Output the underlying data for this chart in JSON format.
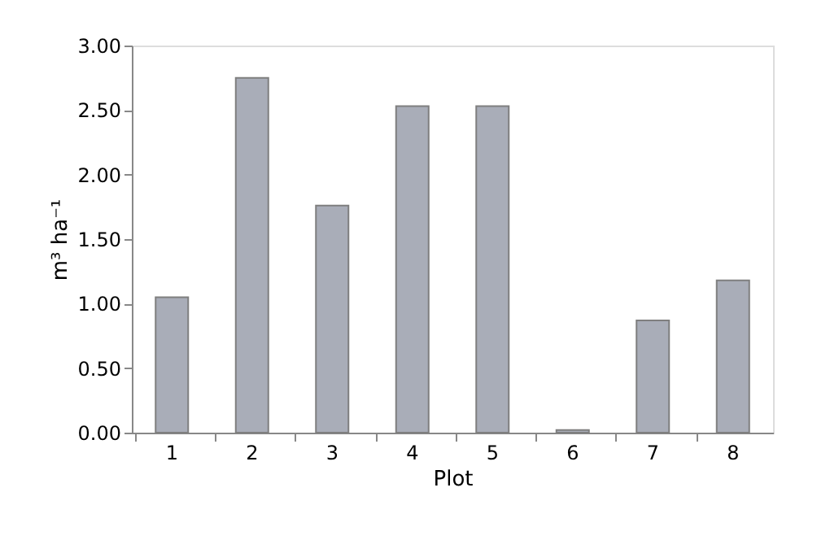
{
  "chart_data": {
    "type": "bar",
    "xlabel": "Plot",
    "ylabel": "m³ ha⁻¹",
    "categories": [
      "1",
      "2",
      "3",
      "4",
      "5",
      "6",
      "7",
      "8"
    ],
    "values": [
      1.05,
      2.75,
      1.76,
      2.53,
      2.53,
      0.02,
      0.87,
      1.18
    ],
    "color": "#a9adb8",
    "ylim": [
      0,
      3
    ],
    "yticks": [
      {
        "value": 0,
        "label": "0.00"
      },
      {
        "value": 0.5,
        "label": "0.50"
      },
      {
        "value": 1,
        "label": "1.00"
      },
      {
        "value": 1.5,
        "label": "1.50"
      },
      {
        "value": 2,
        "label": "2.00"
      },
      {
        "value": 2.5,
        "label": "2.50"
      },
      {
        "value": 3,
        "label": "3.00"
      }
    ],
    "grid": false
  }
}
